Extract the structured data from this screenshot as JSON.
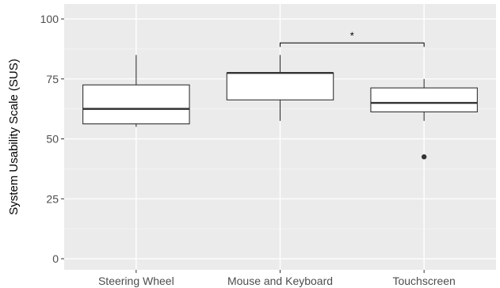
{
  "chart_data": {
    "type": "boxplot",
    "ylabel": "System Usability Scale (SUS)",
    "xlabel": "",
    "ylim": [
      0,
      100
    ],
    "yticks": [
      0,
      25,
      50,
      75,
      100
    ],
    "categories": [
      "Steering Wheel",
      "Mouse and Keyboard",
      "Touchscreen"
    ],
    "boxes": [
      {
        "label": "Steering Wheel",
        "whisker_low": 55,
        "q1": 56.25,
        "median": 62.5,
        "q3": 72.5,
        "whisker_high": 85,
        "outliers": []
      },
      {
        "label": "Mouse and Keyboard",
        "whisker_low": 57.5,
        "q1": 66.25,
        "median": 77.5,
        "q3": 77.5,
        "whisker_high": 85,
        "outliers": []
      },
      {
        "label": "Touchscreen",
        "whisker_low": 57.5,
        "q1": 61.25,
        "median": 65,
        "q3": 71.25,
        "whisker_high": 75,
        "outliers": [
          42.5
        ]
      }
    ],
    "significance": [
      {
        "from": "Mouse and Keyboard",
        "to": "Touchscreen",
        "y": 90,
        "label": "*"
      }
    ],
    "colors": {
      "panel_background": "#ebebeb",
      "grid_major": "#ffffff",
      "grid_minor": "#f5f5f5",
      "box_fill": "#ffffff",
      "box_line": "#333333",
      "outlier": "#333333"
    },
    "grid": true
  }
}
